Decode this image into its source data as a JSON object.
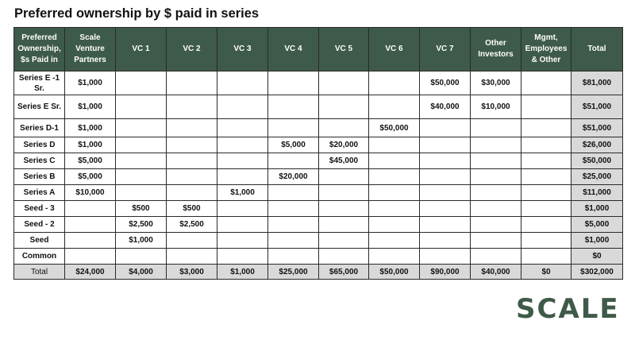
{
  "title": "Preferred ownership by $ paid in series",
  "table": {
    "columns": [
      "Preferred Ownership, $s Paid in",
      "Scale Venture Partners",
      "VC 1",
      "VC 2",
      "VC 3",
      "VC 4",
      "VC 5",
      "VC 6",
      "VC 7",
      "Other Investors",
      "Mgmt, Employees & Other",
      "Total"
    ],
    "rows": [
      [
        "Series E -1 Sr.",
        "$1,000",
        "",
        "",
        "",
        "",
        "",
        "",
        "$50,000",
        "$30,000",
        "",
        "$81,000"
      ],
      [
        "Series E Sr.",
        "$1,000",
        "",
        "",
        "",
        "",
        "",
        "",
        "$40,000",
        "$10,000",
        "",
        "$51,000"
      ],
      [
        "Series D-1",
        "$1,000",
        "",
        "",
        "",
        "",
        "",
        "$50,000",
        "",
        "",
        "",
        "$51,000"
      ],
      [
        "Series D",
        "$1,000",
        "",
        "",
        "",
        "$5,000",
        "$20,000",
        "",
        "",
        "",
        "",
        "$26,000"
      ],
      [
        "Series C",
        "$5,000",
        "",
        "",
        "",
        "",
        "$45,000",
        "",
        "",
        "",
        "",
        "$50,000"
      ],
      [
        "Series B",
        "$5,000",
        "",
        "",
        "",
        "$20,000",
        "",
        "",
        "",
        "",
        "",
        "$25,000"
      ],
      [
        "Series A",
        "$10,000",
        "",
        "",
        "$1,000",
        "",
        "",
        "",
        "",
        "",
        "",
        "$11,000"
      ],
      [
        "Seed - 3",
        "",
        "$500",
        "$500",
        "",
        "",
        "",
        "",
        "",
        "",
        "",
        "$1,000"
      ],
      [
        "Seed - 2",
        "",
        "$2,500",
        "$2,500",
        "",
        "",
        "",
        "",
        "",
        "",
        "",
        "$5,000"
      ],
      [
        "Seed",
        "",
        "$1,000",
        "",
        "",
        "",
        "",
        "",
        "",
        "",
        "",
        "$1,000"
      ],
      [
        "Common",
        "",
        "",
        "",
        "",
        "",
        "",
        "",
        "",
        "",
        "",
        "$0"
      ]
    ],
    "totals": [
      "Total",
      "$24,000",
      "$4,000",
      "$3,000",
      "$1,000",
      "$25,000",
      "$65,000",
      "$50,000",
      "$90,000",
      "$40,000",
      "$0",
      "$302,000"
    ]
  },
  "logo": {
    "text": "SCALE"
  },
  "colors": {
    "header_bg": "#3e5a4a",
    "header_text": "#ffffff",
    "total_bg": "#d9d9d9",
    "logo": "#3f5a48"
  }
}
